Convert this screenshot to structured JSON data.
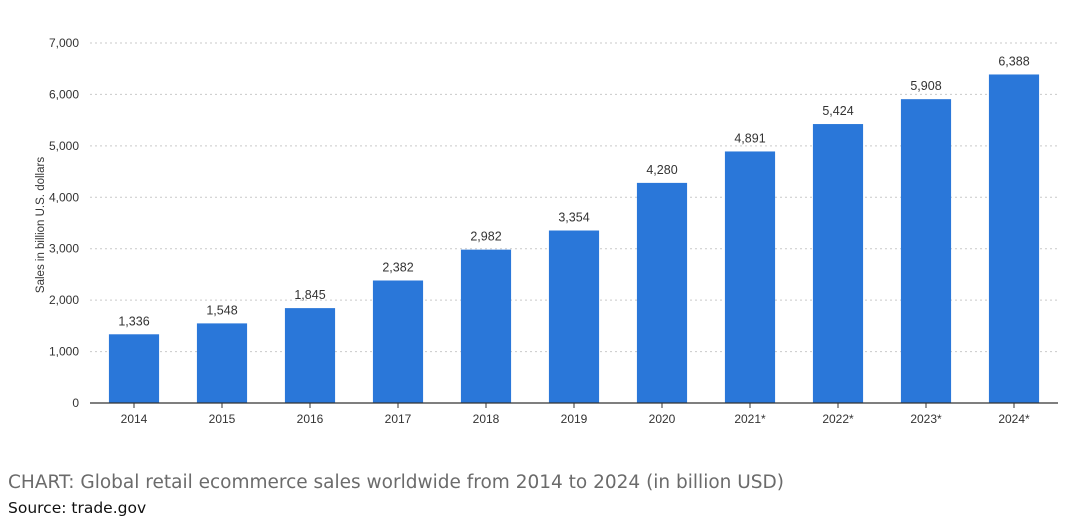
{
  "chart_data": {
    "type": "bar",
    "categories": [
      "2014",
      "2015",
      "2016",
      "2017",
      "2018",
      "2019",
      "2020",
      "2021*",
      "2022*",
      "2023*",
      "2024*"
    ],
    "values": [
      1336,
      1548,
      1845,
      2382,
      2982,
      3354,
      4280,
      4891,
      5424,
      5908,
      6388
    ],
    "value_labels": [
      "1,336",
      "1,548",
      "1,845",
      "2,382",
      "2,982",
      "3,354",
      "4,280",
      "4,891",
      "5,424",
      "5,908",
      "6,388"
    ],
    "ylabel": "Sales in billion U.S. dollars",
    "ylim": [
      0,
      7000
    ],
    "yticks": [
      0,
      1000,
      2000,
      3000,
      4000,
      5000,
      6000,
      7000
    ],
    "ytick_labels": [
      "0",
      "1,000",
      "2,000",
      "3,000",
      "4,000",
      "5,000",
      "6,000",
      "7,000"
    ],
    "grid": true,
    "bar_color": "#2a77d9"
  },
  "caption": "CHART: Global retail ecommerce sales worldwide from 2014 to 2024 (in billion USD)",
  "source": "Source: trade.gov"
}
